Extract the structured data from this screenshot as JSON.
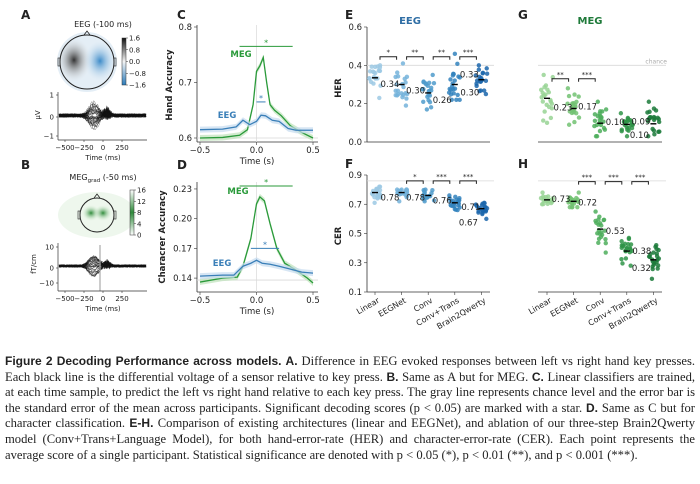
{
  "colors": {
    "eeg": [
      "#9cc9e4",
      "#74b3da",
      "#4f9bcb",
      "#3282bd",
      "#1b66ac"
    ],
    "meg": [
      "#98d494",
      "#72c272",
      "#4eae5c",
      "#2f9448",
      "#1b7a3a"
    ],
    "eeg_title": "#2f6ea5",
    "meg_title": "#1f7a3a",
    "eeg_line": "#3a7fb8",
    "meg_line": "#2a9a3a",
    "chance": "#d8d8d8"
  },
  "panels": {
    "A": "A",
    "B": "B",
    "C": "C",
    "D": "D",
    "E": "E",
    "F": "F",
    "G": "G",
    "H": "H"
  },
  "panel_a": {
    "title": "EEG (-100 ms)",
    "colorbar_ticks": [
      "1.6",
      "0.8",
      "0.0",
      "−0.8",
      "−1.6"
    ],
    "y_label": "µV",
    "y_ticks": [
      "1",
      "0",
      "−1"
    ],
    "x_ticks": [
      "−500",
      "−250",
      "0",
      "250"
    ],
    "x_label": "Time (ms)"
  },
  "panel_b": {
    "title_main": "MEG",
    "title_sub": "grad",
    "title_rest": " (-50 ms)",
    "colorbar_ticks": [
      "16",
      "12",
      "8",
      "4",
      "0"
    ],
    "y_label": "fT/cm",
    "y_ticks": [
      "10",
      "0",
      "−10"
    ],
    "x_ticks": [
      "−500",
      "−250",
      "0",
      "250"
    ],
    "x_label": "Time (ms)"
  },
  "chart_data": [
    {
      "panel": "C",
      "type": "line",
      "xlabel": "Time (s)",
      "ylabel": "Hand Accuracy",
      "xlim": [
        -0.5,
        0.5
      ],
      "ylim": [
        0.6,
        0.8
      ],
      "x_ticks": [
        "−0.5",
        "0.0",
        "0.5"
      ],
      "y_ticks": [
        "0.8",
        "0.7",
        "0.6"
      ],
      "chance": 0.6,
      "series": [
        {
          "name": "MEG",
          "x": [
            -0.5,
            -0.3,
            -0.15,
            -0.08,
            -0.03,
            0,
            0.03,
            0.06,
            0.09,
            0.12,
            0.16,
            0.22,
            0.3,
            0.4,
            0.5
          ],
          "y": [
            0.6,
            0.601,
            0.605,
            0.615,
            0.66,
            0.72,
            0.73,
            0.745,
            0.7,
            0.66,
            0.65,
            0.64,
            0.622,
            0.61,
            0.6
          ],
          "sig": {
            "from": -0.15,
            "to": 0.32,
            "y": 0.765,
            "label": "*"
          }
        },
        {
          "name": "EEG",
          "x": [
            -0.5,
            -0.3,
            -0.18,
            -0.12,
            -0.06,
            0,
            0.04,
            0.08,
            0.14,
            0.2,
            0.28,
            0.35,
            0.5
          ],
          "y": [
            0.615,
            0.616,
            0.62,
            0.632,
            0.624,
            0.63,
            0.641,
            0.64,
            0.632,
            0.63,
            0.617,
            0.614,
            0.614
          ],
          "sig": {
            "from": 0,
            "to": 0.08,
            "y": 0.665,
            "label": "*"
          }
        }
      ]
    },
    {
      "panel": "D",
      "type": "line",
      "xlabel": "Time (s)",
      "ylabel": "Characrer Accuracy",
      "xlim": [
        -0.5,
        0.5
      ],
      "ylim": [
        0.13,
        0.235
      ],
      "x_ticks": [
        "−0.5",
        "0.0",
        "0.5"
      ],
      "y_ticks": [
        "0.23",
        "0.20",
        "0.17",
        "0.14"
      ],
      "y_tick_values": [
        0.23,
        0.2,
        0.17,
        0.14
      ],
      "chance": 0.138,
      "series": [
        {
          "name": "MEG",
          "x": [
            -0.5,
            -0.3,
            -0.17,
            -0.12,
            -0.05,
            0,
            0.03,
            0.07,
            0.12,
            0.18,
            0.25,
            0.35,
            0.45,
            0.5
          ],
          "y": [
            0.136,
            0.14,
            0.141,
            0.152,
            0.18,
            0.215,
            0.222,
            0.218,
            0.195,
            0.17,
            0.155,
            0.148,
            0.14,
            0.135
          ],
          "sig": {
            "from": -0.15,
            "to": 0.32,
            "y": 0.233,
            "label": "*"
          }
        },
        {
          "name": "EEG",
          "x": [
            -0.5,
            -0.3,
            -0.2,
            -0.12,
            -0.05,
            0,
            0.05,
            0.12,
            0.2,
            0.3,
            0.4,
            0.5
          ],
          "y": [
            0.142,
            0.143,
            0.143,
            0.152,
            0.155,
            0.158,
            0.155,
            0.154,
            0.152,
            0.149,
            0.146,
            0.145
          ],
          "sig": {
            "from": -0.05,
            "to": 0.2,
            "y": 0.17,
            "label": "*"
          }
        }
      ]
    },
    {
      "panel": "E",
      "type": "scatter",
      "title": "EEG",
      "ylabel": "HER",
      "ylim": [
        0,
        0.6
      ],
      "y_ticks": [
        "0.6",
        "0.4",
        "0.2",
        "0.0"
      ],
      "y_tick_values": [
        0.6,
        0.4,
        0.2,
        0
      ],
      "chance": 0.4,
      "categories": [
        "Linear",
        "EEGNet",
        "Conv",
        "Conv+Trans",
        "Brain2Qwerty"
      ],
      "means": [
        0.335,
        0.3,
        0.256,
        0.3,
        0.325
      ],
      "mean_labels": [
        "0.34",
        "0.30",
        "0.26",
        "0.30",
        "0.33"
      ],
      "ranges": [
        [
          0.23,
          0.4
        ],
        [
          0.19,
          0.41
        ],
        [
          0.17,
          0.35
        ],
        [
          0.22,
          0.46
        ],
        [
          0.25,
          0.4
        ]
      ],
      "sig": [
        {
          "from": 0,
          "to": 1,
          "label": "*"
        },
        {
          "from": 1,
          "to": 2,
          "label": "**"
        },
        {
          "from": 2,
          "to": 3,
          "label": "**"
        },
        {
          "from": 3,
          "to": 4,
          "label": "***"
        }
      ],
      "sig_y": 0.445
    },
    {
      "panel": "F",
      "type": "scatter",
      "ylabel": "CER",
      "ylim": [
        0.1,
        0.9
      ],
      "y_ticks": [
        "0.9",
        "0.7",
        "0.5",
        "0.3",
        "0.1"
      ],
      "y_tick_values": [
        0.9,
        0.7,
        0.5,
        0.3,
        0.1
      ],
      "chance": 0.86,
      "categories": [
        "Linear",
        "EEGNet",
        "Conv",
        "Conv+Trans",
        "Brain2Qwerty"
      ],
      "means": [
        0.78,
        0.78,
        0.76,
        0.71,
        0.67
      ],
      "mean_labels": [
        "0.78",
        "0.78",
        "0.76",
        "0.71",
        "0.67"
      ],
      "ranges": [
        [
          0.71,
          0.82
        ],
        [
          0.72,
          0.8
        ],
        [
          0.72,
          0.8
        ],
        [
          0.66,
          0.76
        ],
        [
          0.6,
          0.71
        ]
      ],
      "sig": [
        {
          "from": 1,
          "to": 2,
          "label": "*"
        },
        {
          "from": 2,
          "to": 3,
          "label": "***"
        },
        {
          "from": 3,
          "to": 4,
          "label": "***"
        }
      ],
      "sig_y": 0.86
    },
    {
      "panel": "G",
      "type": "scatter",
      "title": "MEG",
      "chance_label": "chance",
      "ylim": [
        0,
        0.6
      ],
      "chance": 0.4,
      "categories": [
        "Linear",
        "EEGNet",
        "Conv",
        "Conv+Trans",
        "Brain2Qwerty"
      ],
      "means": [
        0.228,
        0.175,
        0.098,
        0.092,
        0.095
      ],
      "mean_labels": [
        "0.23",
        "0.17",
        "0.10",
        "0.09",
        "0.10"
      ],
      "ranges": [
        [
          0.1,
          0.35
        ],
        [
          0.09,
          0.28
        ],
        [
          0.03,
          0.21
        ],
        [
          0.03,
          0.15
        ],
        [
          0.03,
          0.21
        ]
      ],
      "sig": [
        {
          "from": 0,
          "to": 1,
          "label": "**"
        },
        {
          "from": 1,
          "to": 2,
          "label": "***"
        }
      ],
      "sig_y": 0.33
    },
    {
      "panel": "H",
      "type": "scatter",
      "ylim": [
        0.1,
        0.9
      ],
      "chance": 0.86,
      "categories": [
        "Linear",
        "EEGNet",
        "Conv",
        "Conv+Trans",
        "Brain2Qwerty"
      ],
      "means": [
        0.73,
        0.72,
        0.53,
        0.38,
        0.32
      ],
      "mean_labels": [
        "0.73",
        "0.72",
        "0.53",
        "0.38",
        "0.32"
      ],
      "ranges": [
        [
          0.7,
          0.78
        ],
        [
          0.68,
          0.78
        ],
        [
          0.37,
          0.65
        ],
        [
          0.28,
          0.47
        ],
        [
          0.19,
          0.42
        ]
      ],
      "sig": [
        {
          "from": 1,
          "to": 2,
          "label": "***"
        },
        {
          "from": 2,
          "to": 3,
          "label": "***"
        },
        {
          "from": 3,
          "to": 4,
          "label": "***"
        }
      ],
      "sig_y": 0.855
    }
  ],
  "caption": {
    "fig": "Figure 2  Decoding Performance across models.",
    "a_lbl": "A.",
    "a": " Difference in EEG evoked responses between left vs right hand key presses. Each black line is the differential voltage of a sensor relative to key press. ",
    "b_lbl": "B.",
    "b": " Same as A but for MEG. ",
    "c_lbl": "C.",
    "c": " Linear classifiers are trained, at each time sample, to predict the left vs right hand relative to each key press. The gray line represents chance level and the error bar is the standard error of the mean across participants. Significant decoding scores (p < 0.05) are marked with a star. ",
    "d_lbl": "D.",
    "d": " Same as C but for character classification. ",
    "eh_lbl": "E-H.",
    "eh": " Comparison of existing architectures (linear and EEGNet), and ablation of our three-step Brain2Qwerty model (Conv+Trans+Language Model), for both hand-error-rate (HER) and character-error-rate (CER). Each point represents the average score of a single participant. Statistical significance are denoted with p < 0.05 (*), p < 0.01 (**), and p < 0.001 (***)."
  }
}
